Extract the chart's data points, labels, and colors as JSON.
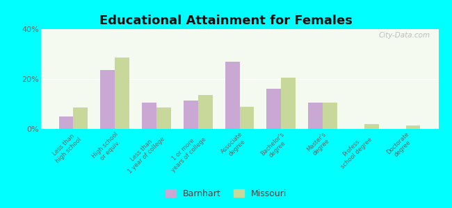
{
  "title": "Educational Attainment for Females",
  "categories": [
    "Less than\nhigh school",
    "High school\nor equiv.",
    "Less than\n1 year of college",
    "1 or more\nyears of college",
    "Associate\ndegree",
    "Bachelor's\ndegree",
    "Master's\ndegree",
    "Profess.\nschool degree",
    "Doctorate\ndegree"
  ],
  "barnhart": [
    5.0,
    23.5,
    10.5,
    11.5,
    27.0,
    16.0,
    10.5,
    0.0,
    0.0
  ],
  "missouri": [
    8.5,
    28.5,
    8.5,
    13.5,
    9.0,
    20.5,
    10.5,
    2.0,
    1.5
  ],
  "barnhart_color": "#c9a8d4",
  "missouri_color": "#c8d89a",
  "background_color": "#00ffff",
  "ylim": [
    0,
    40
  ],
  "yticks": [
    0,
    20,
    40
  ],
  "ytick_labels": [
    "0%",
    "20%",
    "40%"
  ],
  "bar_width": 0.35,
  "watermark": "City-Data.com",
  "legend_labels": [
    "Barnhart",
    "Missouri"
  ]
}
